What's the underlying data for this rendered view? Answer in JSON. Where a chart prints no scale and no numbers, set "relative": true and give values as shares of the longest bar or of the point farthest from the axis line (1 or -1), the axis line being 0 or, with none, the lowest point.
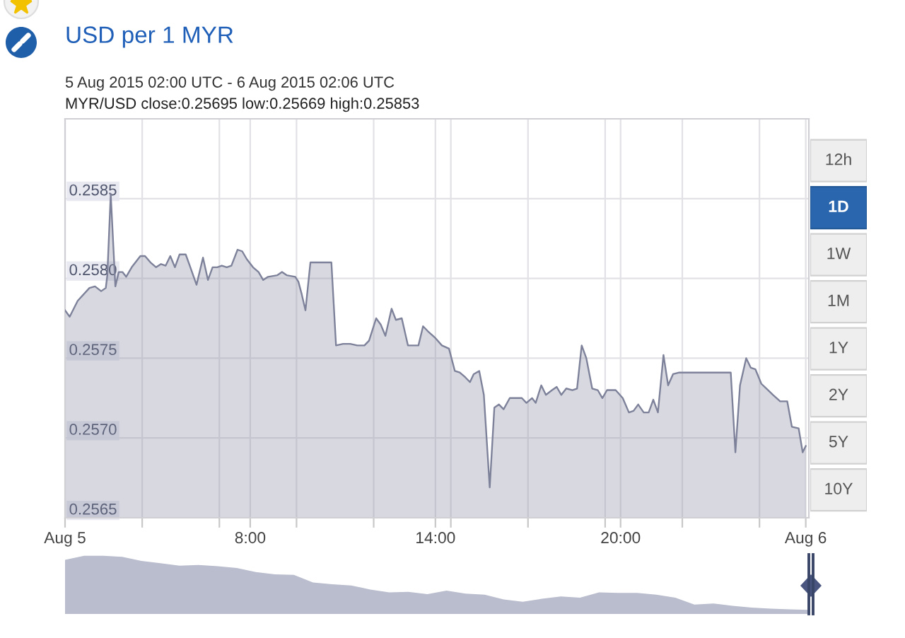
{
  "chart_data": [
    {
      "type": "area",
      "title": "USD per 1 MYR",
      "subtitle": "5 Aug 2015 02:00 UTC - 6 Aug 2015 02:06 UTC",
      "annotations": [
        "MYR/USD close:0.25695 low:0.25669 high:0.25853"
      ],
      "x": [
        2.0,
        2.15,
        2.41,
        2.79,
        2.97,
        3.17,
        3.32,
        3.37,
        3.48,
        3.63,
        3.74,
        3.86,
        3.98,
        4.16,
        4.44,
        4.59,
        4.77,
        4.95,
        5.11,
        5.26,
        5.41,
        5.56,
        5.71,
        5.91,
        6.06,
        6.26,
        6.47,
        6.63,
        6.78,
        6.93,
        7.08,
        7.24,
        7.39,
        7.59,
        7.74,
        7.89,
        8.09,
        8.27,
        8.42,
        8.58,
        8.88,
        9.03,
        9.18,
        9.46,
        9.56,
        9.67,
        9.79,
        9.95,
        10.55,
        10.63,
        10.78,
        11.01,
        11.24,
        11.47,
        11.7,
        11.85,
        12.08,
        12.23,
        12.38,
        12.58,
        12.72,
        12.91,
        13.11,
        13.45,
        13.6,
        13.75,
        13.98,
        14.21,
        14.44,
        14.63,
        14.79,
        14.97,
        15.12,
        15.24,
        15.42,
        15.57,
        15.76,
        15.91,
        16.06,
        16.21,
        16.41,
        16.8,
        16.95,
        17.13,
        17.25,
        17.43,
        17.58,
        17.78,
        17.93,
        18.08,
        18.24,
        18.44,
        18.59,
        18.74,
        18.89,
        19.08,
        19.26,
        19.41,
        19.56,
        19.84,
        20.07,
        20.27,
        20.42,
        20.57,
        20.75,
        20.91,
        21.06,
        21.21,
        21.39,
        21.54,
        21.7,
        21.9,
        23.57,
        23.72,
        23.87,
        24.07,
        24.22,
        24.37,
        24.56,
        24.78,
        24.94,
        25.17,
        25.4,
        25.55,
        25.77,
        25.9,
        26.0
      ],
      "series": [
        {
          "color": "#7d8199",
          "values": [
            0.2578,
            0.25776,
            0.25786,
            0.25794,
            0.25795,
            0.25792,
            0.25794,
            0.25802,
            0.25853,
            0.25795,
            0.25804,
            0.25804,
            0.25801,
            0.25807,
            0.25814,
            0.25814,
            0.2581,
            0.25807,
            0.25809,
            0.25808,
            0.25814,
            0.25807,
            0.25815,
            0.25815,
            0.25807,
            0.25796,
            0.25813,
            0.25799,
            0.25807,
            0.25807,
            0.25808,
            0.25807,
            0.25808,
            0.25818,
            0.25817,
            0.25812,
            0.25807,
            0.25804,
            0.25799,
            0.25801,
            0.25802,
            0.25804,
            0.25802,
            0.25801,
            0.25798,
            0.2579,
            0.2578,
            0.2581,
            0.2581,
            0.2581,
            0.25758,
            0.25759,
            0.25759,
            0.25758,
            0.25758,
            0.25761,
            0.25775,
            0.25771,
            0.25764,
            0.25781,
            0.25774,
            0.25775,
            0.25758,
            0.25758,
            0.2577,
            0.25767,
            0.25763,
            0.25758,
            0.25756,
            0.25742,
            0.25741,
            0.25738,
            0.25735,
            0.2574,
            0.25742,
            0.25727,
            0.25669,
            0.25719,
            0.25721,
            0.25718,
            0.25725,
            0.25725,
            0.25722,
            0.25725,
            0.25722,
            0.25733,
            0.25727,
            0.2573,
            0.25732,
            0.25727,
            0.25731,
            0.2573,
            0.25731,
            0.25758,
            0.2575,
            0.25731,
            0.2573,
            0.25725,
            0.2573,
            0.2573,
            0.25725,
            0.25716,
            0.25717,
            0.25721,
            0.25716,
            0.25716,
            0.25724,
            0.25716,
            0.25752,
            0.25733,
            0.2574,
            0.25741,
            0.25741,
            0.25691,
            0.25733,
            0.2575,
            0.25744,
            0.25743,
            0.25734,
            0.2573,
            0.25727,
            0.25723,
            0.25723,
            0.25707,
            0.25706,
            0.25691,
            0.25695
          ]
        }
      ],
      "xlim": [
        2,
        26.1
      ],
      "ylim": [
        0.2565,
        0.259
      ],
      "xticks": [
        {
          "value": 2,
          "label": "Aug 5"
        },
        {
          "value": 4.5,
          "label": null
        },
        {
          "value": 7,
          "label": null
        },
        {
          "value": 8,
          "label": "8:00"
        },
        {
          "value": 9.5,
          "label": null
        },
        {
          "value": 12,
          "label": null
        },
        {
          "value": 14,
          "label": "14:00"
        },
        {
          "value": 14.5,
          "label": null
        },
        {
          "value": 17,
          "label": null
        },
        {
          "value": 19.5,
          "label": null
        },
        {
          "value": 20,
          "label": "20:00"
        },
        {
          "value": 22,
          "label": null
        },
        {
          "value": 24.5,
          "label": null
        },
        {
          "value": 26,
          "label": "Aug 6"
        }
      ],
      "yticks": [
        0.2565,
        {
          "value": 0.257,
          "label": "0.2570"
        },
        0.2575,
        {
          "value": 0.258,
          "label": "0.2580"
        },
        0.2585
      ],
      "grid": true
    },
    {
      "type": "other",
      "categories": [
        "12h",
        "1D",
        "1W",
        "1M",
        "1Y",
        "2Y",
        "5Y",
        "10Y"
      ],
      "colors": [
        "#eeeeee",
        "#2a66ae",
        "#eeeeee",
        "#eeeeee",
        "#eeeeee",
        "#eeeeee",
        "#eeeeee",
        "#eeeeee"
      ]
    },
    {
      "type": "area",
      "relative": true,
      "categories": [
        null,
        null,
        null,
        null,
        null,
        null,
        null,
        null,
        null,
        null,
        null,
        null,
        null,
        null,
        null,
        null,
        null,
        null,
        null,
        null,
        null,
        null,
        null,
        null,
        null,
        null,
        null,
        null,
        null,
        null,
        null,
        null,
        null,
        null,
        null,
        null,
        null,
        null,
        null,
        null
      ],
      "series": [
        {
          "color": "#b9bdcd",
          "values": [
            0.93,
            1,
            1,
            0.98,
            0.91,
            0.87,
            0.83,
            0.84,
            0.82,
            0.79,
            0.72,
            0.68,
            0.67,
            0.54,
            0.51,
            0.49,
            0.42,
            0.37,
            0.38,
            0.34,
            0.4,
            0.35,
            0.33,
            0.25,
            0.21,
            0.26,
            0.3,
            0.28,
            0.37,
            0.36,
            0.36,
            0.33,
            0.28,
            0.16,
            0.18,
            0.14,
            0.11,
            0.09,
            0.08,
            0.07
          ]
        }
      ]
    }
  ]
}
